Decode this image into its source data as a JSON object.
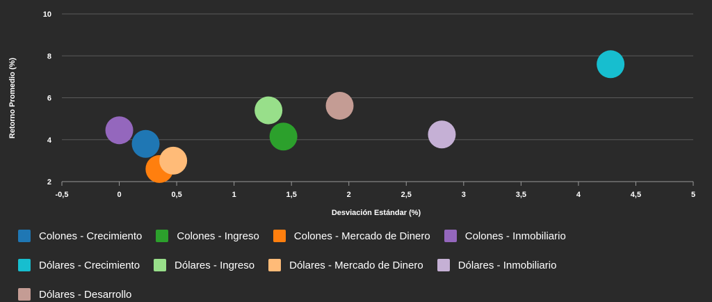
{
  "chart_data": {
    "type": "scatter",
    "xlabel": "Desviación Estándar (%)",
    "ylabel": "Retorno Promedio (%)",
    "xlim": [
      -0.5,
      5
    ],
    "ylim": [
      2,
      10
    ],
    "x_ticks": [
      "-0,5",
      "0",
      "0,5",
      "1",
      "1,5",
      "2",
      "2,5",
      "3",
      "3,5",
      "4",
      "4,5",
      "5"
    ],
    "y_ticks": [
      "2",
      "4",
      "6",
      "8",
      "10"
    ],
    "grid": "horizontal",
    "legend_position": "bottom",
    "series": [
      {
        "name": "Colones - Crecimiento",
        "color": "#1f77b4",
        "x": 0.23,
        "y": 3.8
      },
      {
        "name": "Colones - Ingreso",
        "color": "#2ca02c",
        "x": 1.43,
        "y": 4.15
      },
      {
        "name": "Colones - Mercado de Dinero",
        "color": "#ff7f0e",
        "x": 0.35,
        "y": 2.6
      },
      {
        "name": "Colones - Inmobiliario",
        "color": "#9467bd",
        "x": 0.0,
        "y": 4.45
      },
      {
        "name": "Dólares - Crecimiento",
        "color": "#17becf",
        "x": 4.28,
        "y": 7.6
      },
      {
        "name": "Dólares - Ingreso",
        "color": "#98df8a",
        "x": 1.3,
        "y": 5.4
      },
      {
        "name": "Dólares - Mercado de Dinero",
        "color": "#ffbb78",
        "x": 0.47,
        "y": 3.0
      },
      {
        "name": "Dólares - Inmobiliario",
        "color": "#c5b0d5",
        "x": 2.81,
        "y": 4.25
      },
      {
        "name": "Dólares - Desarrollo",
        "color": "#c49c94",
        "x": 1.92,
        "y": 5.62
      }
    ]
  }
}
